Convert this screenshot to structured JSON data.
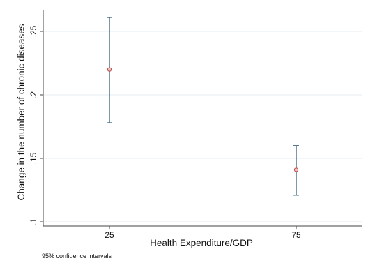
{
  "chart_data": {
    "type": "scatter",
    "subtype": "point-with-confidence-interval",
    "xlabel": "Health Expenditure/GDP",
    "ylabel": "Change in the number of chronic diseases",
    "x_tick_labels": [
      "25",
      "75"
    ],
    "y_ticks": [
      0.1,
      0.15,
      0.2,
      0.25
    ],
    "y_tick_labels": [
      ".1",
      ".15",
      ".2",
      ".25"
    ],
    "ylim": [
      0.1,
      0.25
    ],
    "grid": "horizontal",
    "note": "95% confidence intervals",
    "points": [
      {
        "x": "25",
        "estimate": 0.22,
        "ci_low": 0.178,
        "ci_high": 0.261
      },
      {
        "x": "75",
        "estimate": 0.141,
        "ci_low": 0.121,
        "ci_high": 0.16
      }
    ],
    "colors": {
      "ci_line": "#35607f",
      "marker_edge": "#c0504d",
      "marker_fill": "#e8c5c5",
      "grid": "#e6ecf0",
      "axis": "#444444"
    }
  }
}
